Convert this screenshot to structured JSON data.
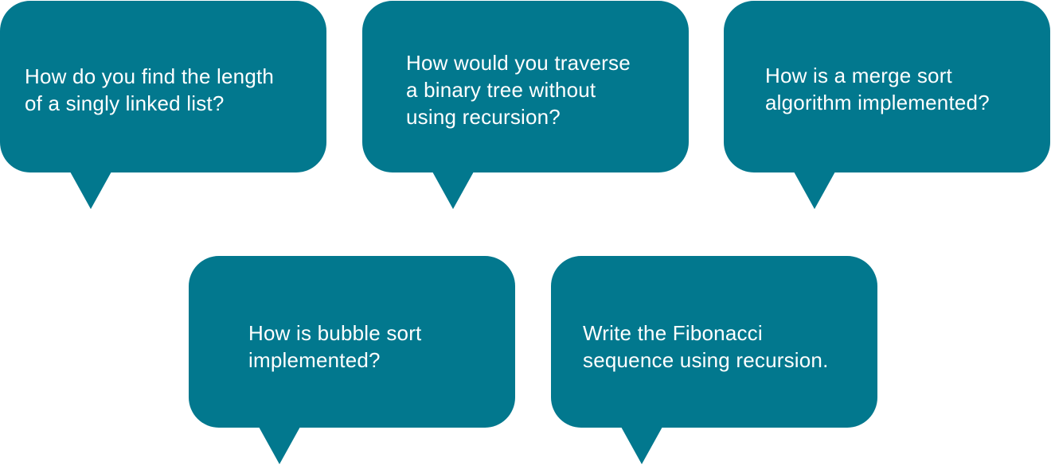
{
  "colors": {
    "bubble": "#02788e",
    "text": "#ffffff",
    "background": "#ffffff"
  },
  "bubbles": [
    {
      "lines": [
        "How do you find the length",
        "of a singly linked list?"
      ]
    },
    {
      "lines": [
        "How would you traverse",
        "a binary tree without",
        "using recursion?"
      ]
    },
    {
      "lines": [
        "How is a merge sort",
        "algorithm implemented?"
      ]
    },
    {
      "lines": [
        "How is bubble sort",
        "implemented?"
      ]
    },
    {
      "lines": [
        "Write the Fibonacci",
        "sequence using recursion."
      ]
    }
  ]
}
